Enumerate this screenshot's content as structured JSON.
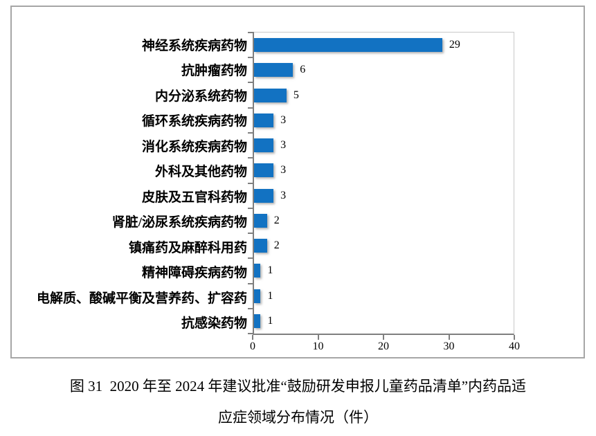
{
  "figure": {
    "caption_line1": "图 31  2020 年至 2024 年建议批准“鼓励研发申报儿童药品清单”内药品适",
    "caption_line2": "应症领域分布情况（件）"
  },
  "chart_data": {
    "type": "bar",
    "orientation": "horizontal",
    "title": "",
    "xlabel": "",
    "ylabel": "",
    "xlim": [
      0,
      40
    ],
    "x_ticks": [
      0,
      10,
      20,
      30,
      40
    ],
    "grid": false,
    "legend": false,
    "bar_color": "#1272c2",
    "value_labels_shown": true,
    "categories": [
      "神经系统疾病药物",
      "抗肿瘤药物",
      "内分泌系统药物",
      "循环系统疾病药物",
      "消化系统疾病药物",
      "外科及其他药物",
      "皮肤及五官科药物",
      "肾脏/泌尿系统疾病药物",
      "镇痛药及麻醉科用药",
      "精神障碍疾病药物",
      "电解质、酸碱平衡及营养药、扩容药",
      "抗感染药物"
    ],
    "values": [
      29,
      6,
      5,
      3,
      3,
      3,
      3,
      2,
      2,
      1,
      1,
      1
    ]
  }
}
